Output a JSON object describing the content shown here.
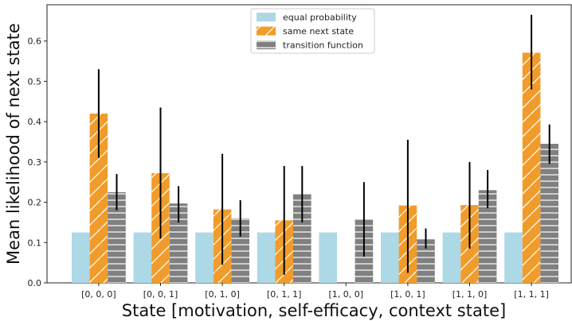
{
  "chart_data": {
    "type": "bar",
    "title": "",
    "xlabel": "State [motivation, self-efficacy, context state]",
    "ylabel": "Mean likelihood of next state",
    "ylim": [
      0,
      0.69
    ],
    "yticks": [
      "0.0",
      "0.1",
      "0.2",
      "0.3",
      "0.4",
      "0.5",
      "0.6"
    ],
    "categories": [
      "[0, 0, 0]",
      "[0, 0, 1]",
      "[0, 1, 0]",
      "[0, 1, 1]",
      "[1, 0, 0]",
      "[1, 0, 1]",
      "[1, 1, 0]",
      "[1, 1, 1]"
    ],
    "legend_position": "top-center",
    "grid": false,
    "series": [
      {
        "name": "equal probability",
        "color": "#add8e6",
        "hatch": "none",
        "values": [
          0.125,
          0.125,
          0.125,
          0.125,
          0.125,
          0.125,
          0.125,
          0.125
        ],
        "err_low": [
          null,
          null,
          null,
          null,
          null,
          null,
          null,
          null
        ],
        "err_high": [
          null,
          null,
          null,
          null,
          null,
          null,
          null,
          null
        ]
      },
      {
        "name": "same next state",
        "color": "#f19c2a",
        "hatch": "diagonal",
        "values": [
          0.42,
          0.272,
          0.182,
          0.155,
          0,
          0.192,
          0.193,
          0.571
        ],
        "err_low": [
          0.31,
          0.11,
          0.045,
          0.02,
          null,
          0.025,
          0.085,
          0.48
        ],
        "err_high": [
          0.53,
          0.435,
          0.32,
          0.29,
          null,
          0.355,
          0.3,
          0.665
        ]
      },
      {
        "name": "transition function",
        "color": "#808080",
        "hatch": "horizontal",
        "values": [
          0.225,
          0.197,
          0.16,
          0.22,
          0.157,
          0.108,
          0.23,
          0.345
        ],
        "err_low": [
          0.18,
          0.15,
          0.115,
          0.15,
          0.065,
          0.085,
          0.185,
          0.295
        ],
        "err_high": [
          0.27,
          0.24,
          0.205,
          0.29,
          0.25,
          0.135,
          0.28,
          0.393
        ]
      }
    ]
  }
}
